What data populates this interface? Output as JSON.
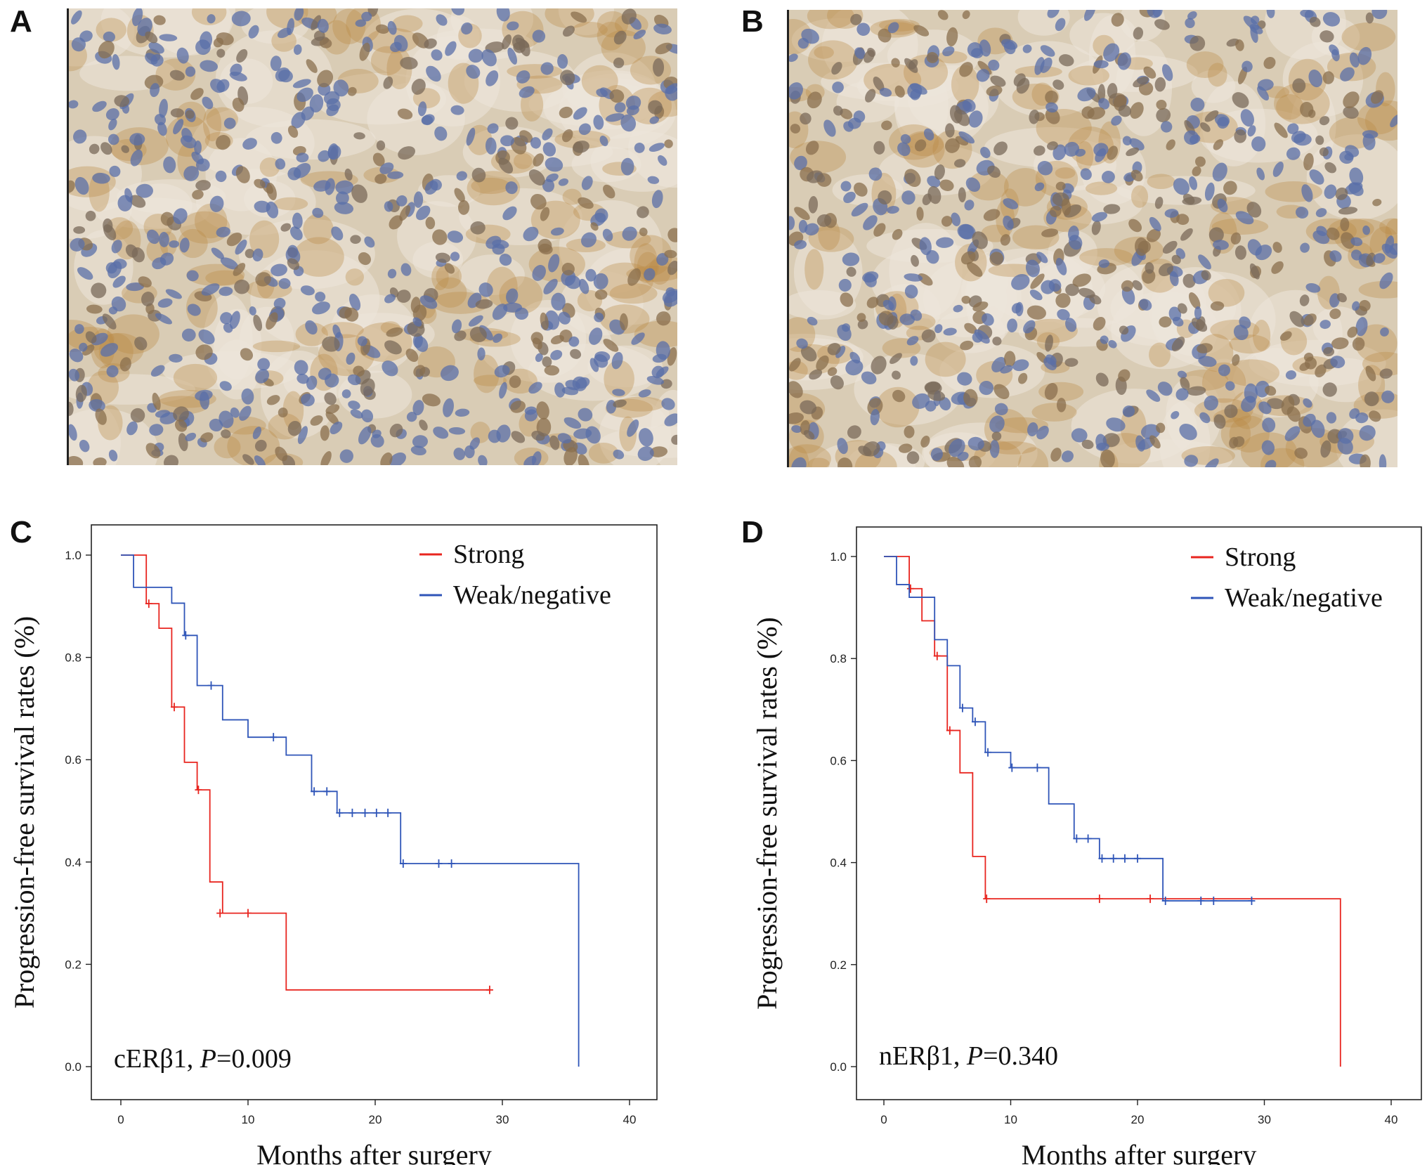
{
  "panels": {
    "a": {
      "letter": "A"
    },
    "b": {
      "letter": "B"
    },
    "c": {
      "letter": "C"
    },
    "d": {
      "letter": "D"
    }
  },
  "colors": {
    "strong": "#e8251f",
    "weak": "#2f55b8",
    "tissue_bg": "#d9ccb5",
    "nucleus": "#5a6fa8",
    "stain": "#b98a45"
  },
  "chart_data": [
    {
      "type": "line",
      "panel": "C",
      "xlabel": "Months after surgery",
      "ylabel": "Progression-free survival rates (%)",
      "annotation": {
        "prefix": "cERβ1, ",
        "italic": "P",
        "suffix": "=0.009"
      },
      "xlim": [
        0,
        40
      ],
      "ylim": [
        0.0,
        1.0
      ],
      "xticks": [
        "0",
        "10",
        "20",
        "30",
        "40"
      ],
      "yticks": [
        "0.0",
        "0.2",
        "0.4",
        "0.6",
        "0.8",
        "1.0"
      ],
      "legend": {
        "position": "top-right"
      },
      "series": [
        {
          "name": "Strong",
          "color": "#e8251f",
          "steps": [
            [
              0,
              1.0
            ],
            [
              2,
              0.905
            ],
            [
              3,
              0.857
            ],
            [
              4,
              0.703
            ],
            [
              5,
              0.595
            ],
            [
              6,
              0.541
            ],
            [
              7,
              0.361
            ],
            [
              8,
              0.3
            ],
            [
              13,
              0.15
            ],
            [
              29,
              0.15
            ]
          ],
          "censored": [
            [
              2.2,
              0.905
            ],
            [
              4.2,
              0.703
            ],
            [
              6.1,
              0.541
            ],
            [
              7.8,
              0.3
            ],
            [
              10,
              0.3
            ],
            [
              29,
              0.15
            ]
          ]
        },
        {
          "name": "Weak/negative",
          "color": "#2f55b8",
          "steps": [
            [
              0,
              1.0
            ],
            [
              1,
              0.937
            ],
            [
              4,
              0.906
            ],
            [
              5,
              0.843
            ],
            [
              6,
              0.745
            ],
            [
              8,
              0.678
            ],
            [
              10,
              0.644
            ],
            [
              13,
              0.609
            ],
            [
              15,
              0.538
            ],
            [
              17,
              0.496
            ],
            [
              22,
              0.397
            ],
            [
              36,
              0.0
            ]
          ],
          "censored": [
            [
              5.1,
              0.843
            ],
            [
              7.1,
              0.745
            ],
            [
              12,
              0.644
            ],
            [
              15.2,
              0.538
            ],
            [
              16.2,
              0.538
            ],
            [
              17.2,
              0.496
            ],
            [
              18.2,
              0.496
            ],
            [
              19.2,
              0.496
            ],
            [
              20.1,
              0.496
            ],
            [
              21,
              0.496
            ],
            [
              22.2,
              0.397
            ],
            [
              25,
              0.397
            ],
            [
              26,
              0.397
            ]
          ]
        }
      ]
    },
    {
      "type": "line",
      "panel": "D",
      "xlabel": "Months after surgery",
      "ylabel": "Progression-free survival rates (%)",
      "annotation": {
        "prefix": "nERβ1, ",
        "italic": "P",
        "suffix": "=0.340"
      },
      "xlim": [
        0,
        40
      ],
      "ylim": [
        0.0,
        1.0
      ],
      "xticks": [
        "0",
        "10",
        "20",
        "30",
        "40"
      ],
      "yticks": [
        "0.0",
        "0.2",
        "0.4",
        "0.6",
        "0.8",
        "1.0"
      ],
      "legend": {
        "position": "top-right"
      },
      "series": [
        {
          "name": "Strong",
          "color": "#e8251f",
          "steps": [
            [
              0,
              1.0
            ],
            [
              2,
              0.937
            ],
            [
              3,
              0.874
            ],
            [
              4,
              0.805
            ],
            [
              5,
              0.659
            ],
            [
              6,
              0.576
            ],
            [
              7,
              0.412
            ],
            [
              8,
              0.329
            ],
            [
              36,
              0.0
            ]
          ],
          "censored": [
            [
              2.1,
              0.937
            ],
            [
              4.2,
              0.805
            ],
            [
              5.2,
              0.659
            ],
            [
              8.1,
              0.329
            ],
            [
              17,
              0.329
            ],
            [
              21,
              0.329
            ]
          ]
        },
        {
          "name": "Weak/negative",
          "color": "#2f55b8",
          "steps": [
            [
              0,
              1.0
            ],
            [
              1,
              0.945
            ],
            [
              2,
              0.92
            ],
            [
              4,
              0.837
            ],
            [
              5,
              0.786
            ],
            [
              6,
              0.703
            ],
            [
              7,
              0.676
            ],
            [
              8,
              0.616
            ],
            [
              10,
              0.586
            ],
            [
              13,
              0.515
            ],
            [
              15,
              0.447
            ],
            [
              17,
              0.408
            ],
            [
              22,
              0.325
            ],
            [
              29,
              0.325
            ]
          ],
          "censored": [
            [
              6.2,
              0.703
            ],
            [
              7.2,
              0.676
            ],
            [
              8.2,
              0.616
            ],
            [
              10.1,
              0.586
            ],
            [
              12.1,
              0.586
            ],
            [
              15.2,
              0.447
            ],
            [
              16.1,
              0.447
            ],
            [
              17.2,
              0.408
            ],
            [
              18.1,
              0.408
            ],
            [
              19,
              0.408
            ],
            [
              20,
              0.408
            ],
            [
              22.2,
              0.325
            ],
            [
              25,
              0.325
            ],
            [
              26,
              0.325
            ],
            [
              29,
              0.325
            ]
          ]
        }
      ]
    }
  ]
}
